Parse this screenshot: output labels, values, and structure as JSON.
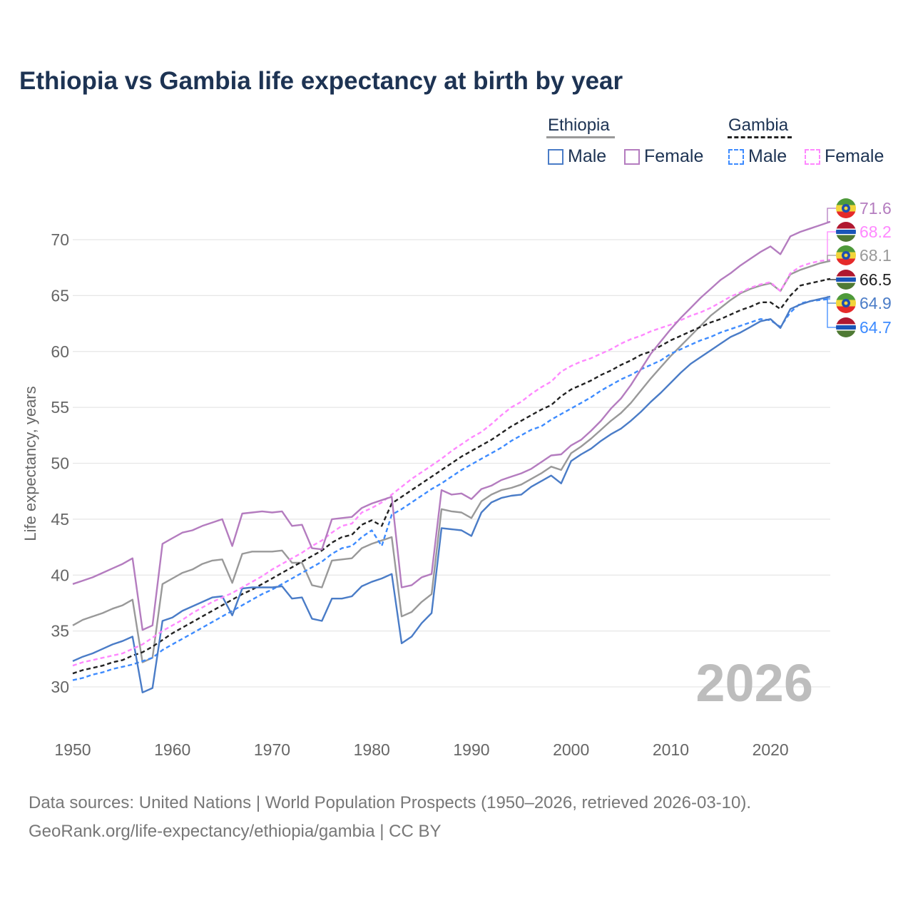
{
  "chart_data": {
    "type": "line",
    "title": "Ethiopia vs Gambia life expectancy at birth by year",
    "xlabel": "",
    "ylabel": "Life expectancy, years",
    "xlim": [
      1950,
      2026
    ],
    "ylim": [
      26,
      73
    ],
    "x_ticks": [
      "1950",
      "1960",
      "1970",
      "1980",
      "1990",
      "2000",
      "2010",
      "2020"
    ],
    "y_ticks": [
      "30",
      "35",
      "40",
      "45",
      "50",
      "55",
      "60",
      "65",
      "70"
    ],
    "grid": true,
    "year_watermark": "2026",
    "legend": {
      "groups": [
        {
          "name": "Ethiopia",
          "items": [
            "Male",
            "Female"
          ]
        },
        {
          "name": "Gambia",
          "items": [
            "Male",
            "Female"
          ]
        }
      ],
      "placement": "top-right"
    },
    "x_start": 1950,
    "series": [
      {
        "name": "Ethiopia Female",
        "color": "#b47cbf",
        "dash": false,
        "end_label": "71.6",
        "flag": "ethiopia",
        "values": [
          39.2,
          39.5,
          39.8,
          40.2,
          40.6,
          41.0,
          41.5,
          35.1,
          35.5,
          42.8,
          43.3,
          43.8,
          44.0,
          44.4,
          44.7,
          45.0,
          42.6,
          45.5,
          45.6,
          45.7,
          45.6,
          45.7,
          44.4,
          44.5,
          42.4,
          42.3,
          45.0,
          45.1,
          45.2,
          46.0,
          46.4,
          46.7,
          47.0,
          38.9,
          39.1,
          39.8,
          40.1,
          47.6,
          47.2,
          47.3,
          46.8,
          47.7,
          48.0,
          48.5,
          48.8,
          49.1,
          49.5,
          50.1,
          50.7,
          50.8,
          51.6,
          52.1,
          52.9,
          53.8,
          54.9,
          55.8,
          57.0,
          58.4,
          59.8,
          60.9,
          62.0,
          63.0,
          63.9,
          64.8,
          65.6,
          66.4,
          67.0,
          67.7,
          68.3,
          68.9,
          69.4,
          68.7,
          70.3,
          70.7,
          71.0,
          71.3,
          71.6
        ]
      },
      {
        "name": "Gambia Female",
        "color": "#ff88ff",
        "dash": true,
        "end_label": "68.2",
        "flag": "gambia",
        "values": [
          31.9,
          32.2,
          32.4,
          32.6,
          32.8,
          33.0,
          33.4,
          33.8,
          34.4,
          35.0,
          35.5,
          36.0,
          36.6,
          37.1,
          37.6,
          38.0,
          38.4,
          38.9,
          39.4,
          39.9,
          40.5,
          41.0,
          41.5,
          42.0,
          42.6,
          43.1,
          43.8,
          44.4,
          44.6,
          45.6,
          46.0,
          46.5,
          47.2,
          47.9,
          48.6,
          49.2,
          49.8,
          50.4,
          51.1,
          51.7,
          52.3,
          52.8,
          53.5,
          54.3,
          55.0,
          55.5,
          56.2,
          56.8,
          57.3,
          58.2,
          58.7,
          59.1,
          59.4,
          59.8,
          60.2,
          60.7,
          61.1,
          61.4,
          61.8,
          62.1,
          62.4,
          62.8,
          63.2,
          63.5,
          63.9,
          64.4,
          64.9,
          65.3,
          65.7,
          66.0,
          66.2,
          65.4,
          67.0,
          67.6,
          67.9,
          68.1,
          68.2
        ]
      },
      {
        "name": "Ethiopia",
        "color": "#999999",
        "dash": false,
        "end_label": "68.1",
        "flag": "ethiopia",
        "values": [
          35.5,
          36.0,
          36.3,
          36.6,
          37.0,
          37.3,
          37.8,
          32.2,
          32.6,
          39.2,
          39.7,
          40.2,
          40.5,
          41.0,
          41.3,
          41.4,
          39.3,
          41.9,
          42.1,
          42.1,
          42.1,
          42.2,
          41.1,
          41.1,
          39.1,
          38.9,
          41.3,
          41.4,
          41.5,
          42.4,
          42.8,
          43.1,
          43.4,
          36.3,
          36.7,
          37.6,
          38.3,
          45.9,
          45.7,
          45.6,
          45.1,
          46.6,
          47.2,
          47.6,
          47.8,
          48.1,
          48.6,
          49.1,
          49.7,
          49.4,
          50.9,
          51.5,
          52.2,
          53.0,
          53.8,
          54.5,
          55.4,
          56.5,
          57.6,
          58.6,
          59.6,
          60.5,
          61.4,
          62.3,
          63.2,
          63.9,
          64.6,
          65.2,
          65.6,
          65.9,
          66.1,
          65.4,
          66.9,
          67.3,
          67.6,
          67.9,
          68.1
        ]
      },
      {
        "name": "Gambia",
        "color": "#222222",
        "dash": true,
        "end_label": "66.5",
        "flag": "gambia",
        "values": [
          31.2,
          31.5,
          31.7,
          31.9,
          32.2,
          32.4,
          32.8,
          33.1,
          33.6,
          34.2,
          34.8,
          35.3,
          35.8,
          36.3,
          36.8,
          37.3,
          37.8,
          38.3,
          38.7,
          39.2,
          39.7,
          40.2,
          40.7,
          41.2,
          41.7,
          42.2,
          42.9,
          43.4,
          43.6,
          44.5,
          44.9,
          44.4,
          46.4,
          47.0,
          47.6,
          48.2,
          48.8,
          49.4,
          50.0,
          50.6,
          51.1,
          51.6,
          52.1,
          52.7,
          53.3,
          53.8,
          54.3,
          54.8,
          55.2,
          56.0,
          56.6,
          57.0,
          57.4,
          57.9,
          58.3,
          58.8,
          59.2,
          59.7,
          60.0,
          60.5,
          61.0,
          61.4,
          61.8,
          62.2,
          62.6,
          62.9,
          63.3,
          63.7,
          64.0,
          64.4,
          64.4,
          63.8,
          65.0,
          65.9,
          66.1,
          66.3,
          66.5
        ]
      },
      {
        "name": "Ethiopia Male",
        "color": "#4a7cc7",
        "dash": false,
        "end_label": "64.9",
        "flag": "ethiopia",
        "values": [
          32.3,
          32.7,
          33.0,
          33.4,
          33.8,
          34.1,
          34.5,
          29.5,
          29.9,
          35.9,
          36.2,
          36.8,
          37.2,
          37.6,
          38.0,
          38.1,
          36.4,
          38.8,
          38.9,
          38.9,
          38.9,
          39.0,
          37.9,
          38.0,
          36.1,
          35.9,
          37.9,
          37.9,
          38.1,
          39.0,
          39.4,
          39.7,
          40.1,
          33.9,
          34.5,
          35.7,
          36.6,
          44.2,
          44.1,
          44.0,
          43.5,
          45.6,
          46.5,
          46.9,
          47.1,
          47.2,
          47.9,
          48.4,
          48.9,
          48.2,
          50.2,
          50.8,
          51.3,
          52.0,
          52.6,
          53.1,
          53.8,
          54.6,
          55.5,
          56.3,
          57.2,
          58.1,
          58.9,
          59.5,
          60.1,
          60.7,
          61.3,
          61.7,
          62.2,
          62.7,
          62.9,
          62.1,
          63.8,
          64.2,
          64.5,
          64.7,
          64.9
        ]
      },
      {
        "name": "Gambia Male",
        "color": "#3d8bff",
        "dash": true,
        "end_label": "64.7",
        "flag": "gambia",
        "values": [
          30.6,
          30.8,
          31.1,
          31.3,
          31.6,
          31.8,
          32.0,
          32.3,
          32.6,
          33.3,
          33.8,
          34.3,
          34.8,
          35.3,
          35.8,
          36.3,
          36.8,
          37.3,
          37.8,
          38.3,
          38.7,
          39.2,
          39.7,
          40.2,
          40.7,
          41.2,
          41.9,
          42.4,
          42.6,
          43.4,
          44.0,
          42.6,
          45.4,
          45.9,
          46.5,
          47.1,
          47.7,
          48.2,
          48.8,
          49.4,
          49.9,
          50.4,
          50.9,
          51.4,
          52.0,
          52.5,
          53.0,
          53.3,
          53.9,
          54.4,
          54.9,
          55.4,
          55.9,
          56.5,
          57.0,
          57.5,
          57.9,
          58.4,
          58.8,
          59.2,
          59.8,
          60.2,
          60.6,
          61.0,
          61.3,
          61.7,
          62.0,
          62.3,
          62.6,
          62.9,
          62.8,
          62.2,
          63.5,
          64.3,
          64.5,
          64.6,
          64.7
        ]
      }
    ]
  },
  "source": {
    "line1": "Data sources: United Nations | World Population Prospects (1950–2026, retrieved 2026-03-10).",
    "line2": "GeoRank.org/life-expectancy/ethiopia/gambia | CC BY"
  }
}
